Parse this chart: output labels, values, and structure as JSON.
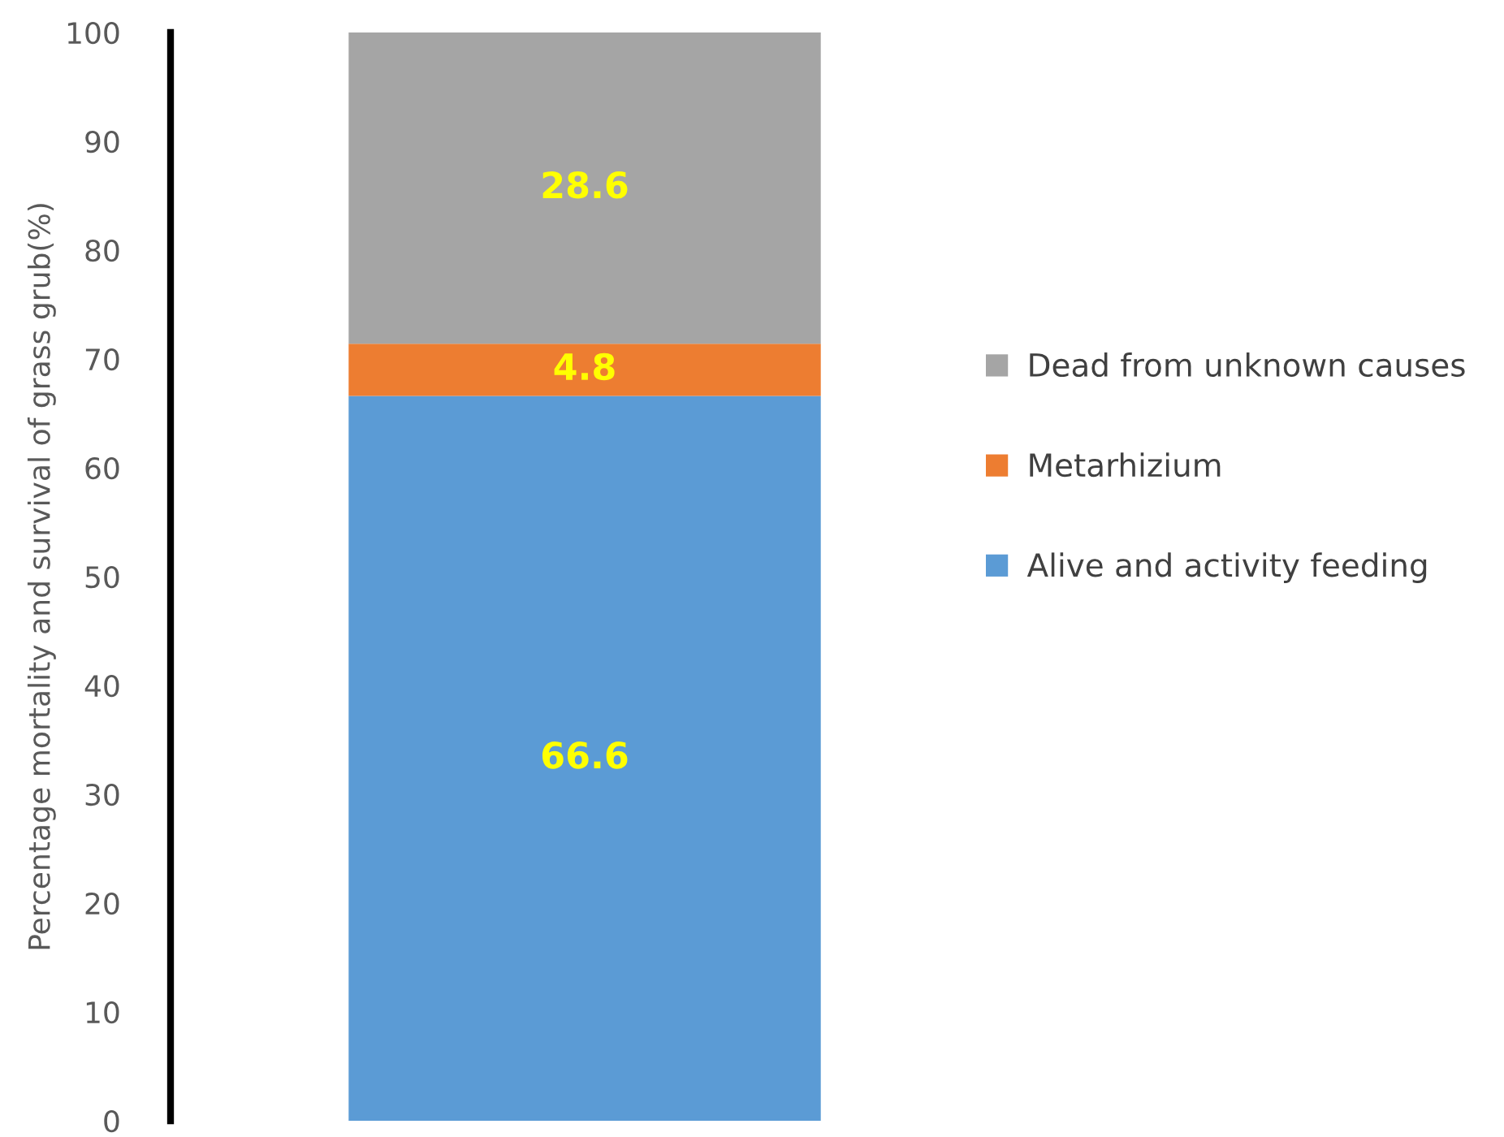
{
  "chart_data": {
    "type": "bar",
    "stacked": true,
    "ylabel": "Percentage mortality and survival of grass grub(%)",
    "categories": [
      null
    ],
    "series": [
      {
        "name": "Alive and activity feeding",
        "color": "#5b9bd5",
        "values": [
          66.6
        ]
      },
      {
        "name": "Metarhizium",
        "color": "#ed7d31",
        "values": [
          4.8
        ]
      },
      {
        "name": "Dead from unknown causes",
        "color": "#a5a5a5",
        "values": [
          28.6
        ]
      }
    ],
    "ylim": [
      0,
      100
    ],
    "yticks": [
      0,
      10,
      20,
      30,
      40,
      50,
      60,
      70,
      80,
      90,
      100
    ],
    "data_labels": true,
    "legend": "right",
    "grid": false
  }
}
